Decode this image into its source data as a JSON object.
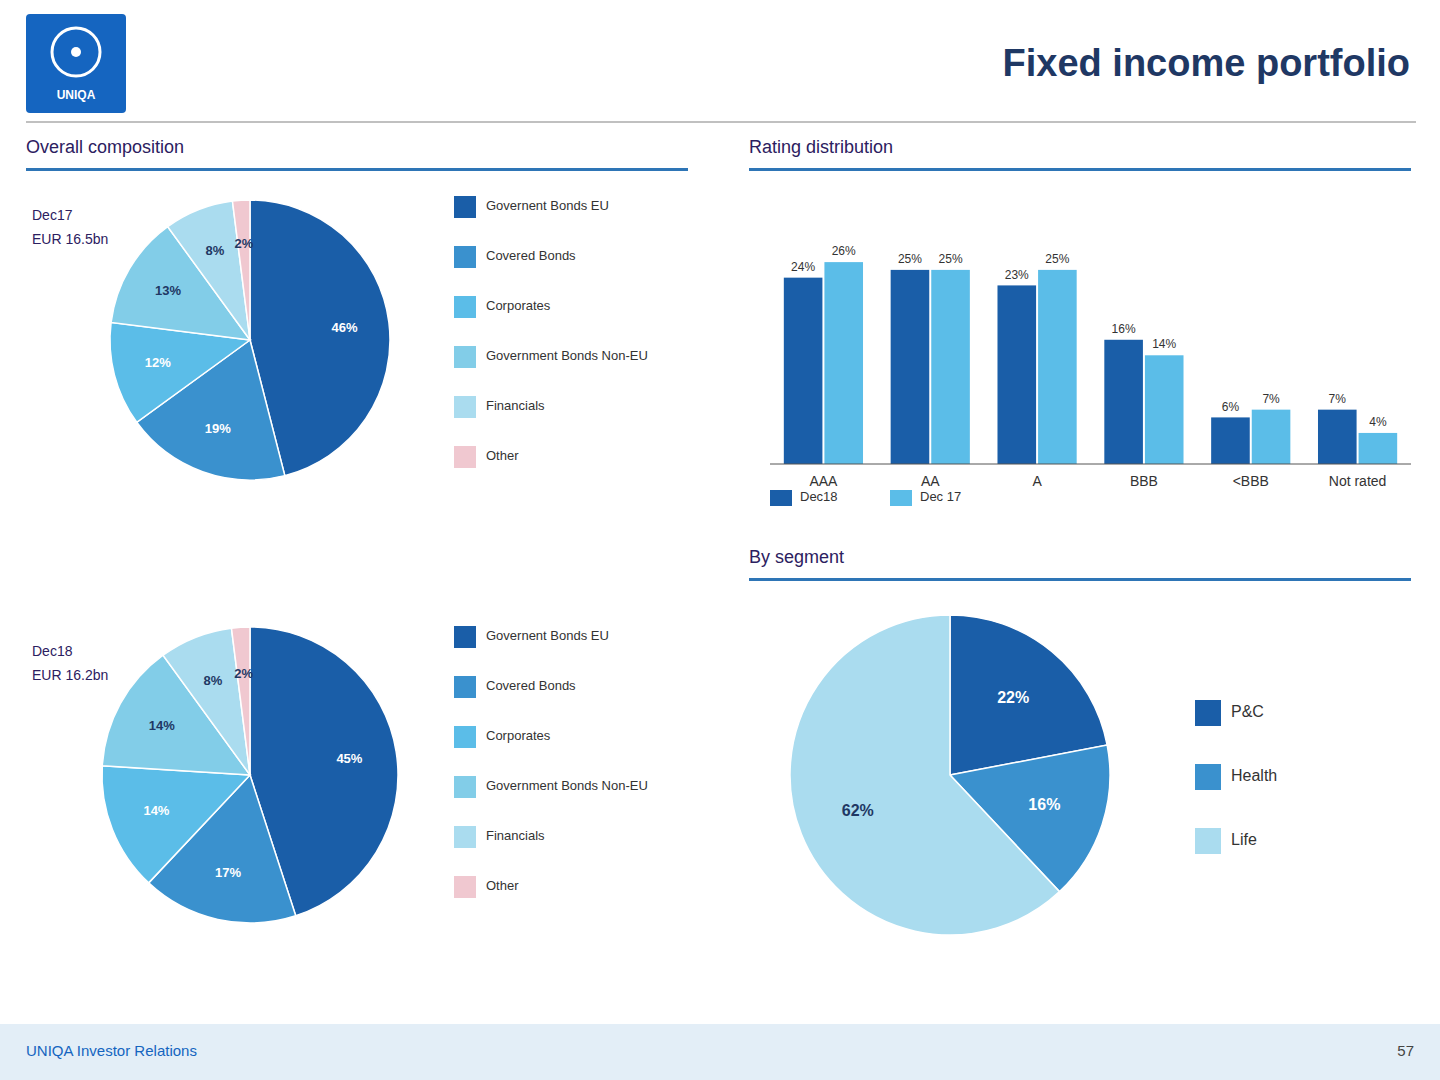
{
  "page": {
    "title": "Fixed income portfolio",
    "logo_text": "UNIQA",
    "sections": [
      "Overall composition"
    ],
    "footer_text": "UNIQA Investor Relations",
    "page_number": "57"
  },
  "chart_data": [
    {
      "type": "pie",
      "title": "Dec17",
      "subtitle": "EUR 16.5bn",
      "categories": [
        "Governent Bonds EU",
        "Covered Bonds",
        "Corporates",
        "Government Bonds Non-EU",
        "Financials",
        "Other"
      ],
      "values": [
        46,
        19,
        12,
        13,
        8,
        2
      ],
      "value_labels": [
        "46%",
        "19%",
        "12%",
        "13%",
        "8%",
        "2%"
      ],
      "colors": [
        "#1A5EA8",
        "#3A91CE",
        "#5BBDE8",
        "#82CDE8",
        "#AADCEF",
        "#F0C8D0"
      ],
      "data_labels": true,
      "legend": "right"
    },
    {
      "type": "pie",
      "title": "Dec18",
      "subtitle": "EUR 16.2bn",
      "categories": [
        "Governent Bonds EU",
        "Covered Bonds",
        "Corporates",
        "Government Bonds Non-EU",
        "Financials",
        "Other"
      ],
      "values": [
        45,
        17,
        14,
        14,
        8,
        2
      ],
      "value_labels": [
        "45%",
        "17%",
        "14%",
        "14%",
        "8%",
        "2%"
      ],
      "colors": [
        "#1A5EA8",
        "#3A91CE",
        "#5BBDE8",
        "#82CDE8",
        "#AADCEF",
        "#F0C8D0"
      ],
      "data_labels": true,
      "legend": "right"
    },
    {
      "type": "bar",
      "title": "Rating distribution",
      "categories": [
        "AAA",
        "AA",
        "A",
        "BBB",
        "<BBB",
        "Not rated"
      ],
      "series": [
        {
          "name": "Dec18",
          "color": "#1A5EA8",
          "values": [
            24,
            25,
            23,
            16,
            6,
            7
          ],
          "value_labels": [
            "24%",
            "25%",
            "23%",
            "16%",
            "6%",
            "7%"
          ]
        },
        {
          "name": "Dec 17",
          "color": "#5BBDE8",
          "values": [
            26,
            25,
            25,
            14,
            7,
            4
          ],
          "value_labels": [
            "26%",
            "25%",
            "25%",
            "14%",
            "7%",
            "4%"
          ]
        }
      ],
      "ylim": [
        0,
        34
      ],
      "grid": false,
      "tick_labels": "x",
      "data_labels": true,
      "legend": "bottom"
    },
    {
      "type": "pie",
      "title": "By segment",
      "categories": [
        "P&C",
        "Health",
        "Life"
      ],
      "values": [
        22,
        16,
        62
      ],
      "value_labels": [
        "22%",
        "16%",
        "62%"
      ],
      "colors": [
        "#1A5EA8",
        "#3A91CE",
        "#AADCEF"
      ],
      "data_labels": true,
      "legend": "right"
    }
  ]
}
